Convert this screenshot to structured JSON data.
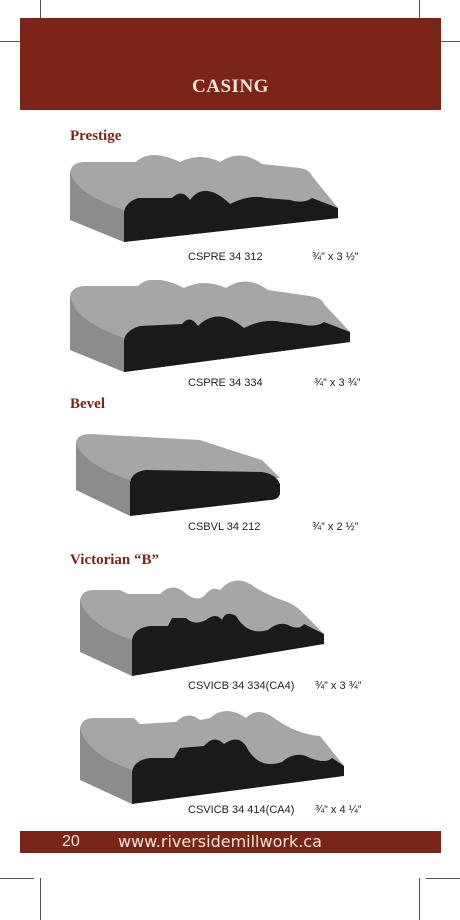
{
  "header": {
    "title": "CASING"
  },
  "sections": [
    {
      "heading": "Prestige",
      "items": [
        {
          "code": "CSPRE 34 312",
          "size": "¾” x 3 ½”"
        },
        {
          "code": "CSPRE 34 334",
          "size": "¾” x 3 ¾”"
        }
      ]
    },
    {
      "heading": "Bevel",
      "items": [
        {
          "code": "CSBVL 34 212",
          "size": "¾” x 2 ½”"
        }
      ]
    },
    {
      "heading": "Victorian “B”",
      "items": [
        {
          "code": "CSVICB 34 334(CA4)",
          "size": "¾” x 3 ¾”"
        },
        {
          "code": "CSVICB 34 414(CA4)",
          "size": "¾” x 4 ¼”"
        }
      ]
    }
  ],
  "footer": {
    "page_number": "20",
    "url": "www.riversidemillwork.ca"
  },
  "colors": {
    "brand": "#7a2518",
    "profile_face": "#9a9a9a",
    "profile_end": "#1a1a1a"
  }
}
